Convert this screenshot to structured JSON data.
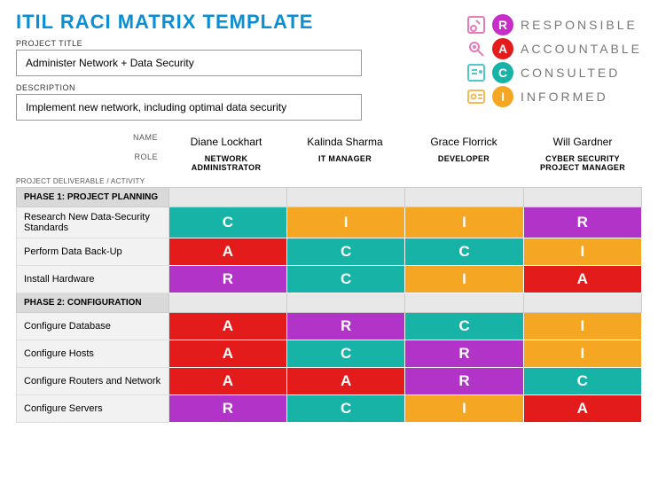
{
  "title": "ITIL RACI MATRIX TEMPLATE",
  "projectTitleLabel": "PROJECT TITLE",
  "projectTitle": "Administer Network + Data Security",
  "descriptionLabel": "DESCRIPTION",
  "description": "Implement new network, including optimal data security",
  "legend": [
    {
      "letter": "R",
      "label": "RESPONSIBLE",
      "color": "#c72ec7",
      "iconColor": "#e57bb8"
    },
    {
      "letter": "A",
      "label": "ACCOUNTABLE",
      "color": "#e31b1b",
      "iconColor": "#e57bb8"
    },
    {
      "letter": "C",
      "label": "CONSULTED",
      "color": "#17b3a6",
      "iconColor": "#4fc9c9"
    },
    {
      "letter": "I",
      "label": "INFORMED",
      "color": "#f5a623",
      "iconColor": "#f5b955"
    }
  ],
  "nameLabel": "NAME",
  "roleLabel": "ROLE",
  "pdLabel": "PROJECT DELIVERABLE / ACTIVITY",
  "people": [
    {
      "name": "Diane Lockhart",
      "role": "NETWORK ADMINISTRATOR"
    },
    {
      "name": "Kalinda Sharma",
      "role": "IT MANAGER"
    },
    {
      "name": "Grace Florrick",
      "role": "DEVELOPER"
    },
    {
      "name": "Will Gardner",
      "role": "CYBER SECURITY PROJECT MANAGER"
    }
  ],
  "colorMap": {
    "R": "#b233c7",
    "A": "#e31b1b",
    "C": "#17b3a6",
    "I": "#f5a623"
  },
  "phases": [
    {
      "label": "PHASE 1: PROJECT PLANNING",
      "rows": [
        {
          "activity": "Research New Data-Security Standards",
          "vals": [
            "C",
            "I",
            "I",
            "R"
          ]
        },
        {
          "activity": "Perform Data Back-Up",
          "vals": [
            "A",
            "C",
            "C",
            "I"
          ]
        },
        {
          "activity": "Install Hardware",
          "vals": [
            "R",
            "C",
            "I",
            "A"
          ]
        }
      ]
    },
    {
      "label": "PHASE 2: CONFIGURATION",
      "rows": [
        {
          "activity": "Configure Database",
          "vals": [
            "A",
            "R",
            "C",
            "I"
          ]
        },
        {
          "activity": "Configure Hosts",
          "vals": [
            "A",
            "C",
            "R",
            "I"
          ]
        },
        {
          "activity": "Configure Routers and Network",
          "vals": [
            "A",
            "A",
            "R",
            "C"
          ]
        },
        {
          "activity": "Configure Servers",
          "vals": [
            "R",
            "C",
            "I",
            "A"
          ]
        }
      ]
    }
  ]
}
